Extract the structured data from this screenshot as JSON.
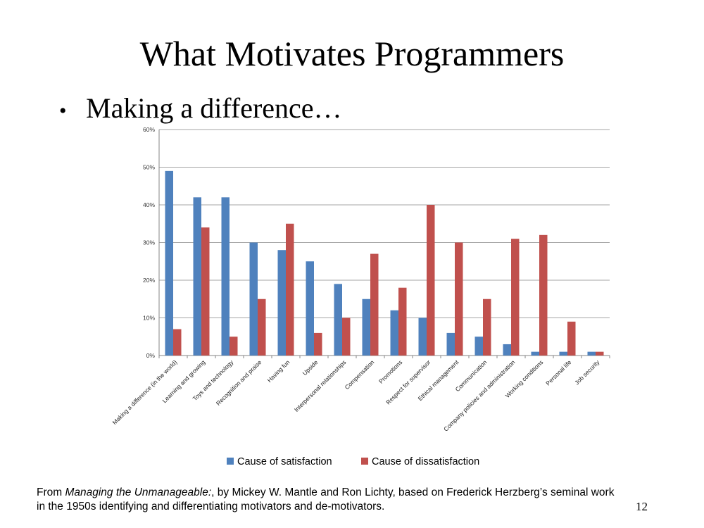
{
  "slide": {
    "title": "What Motivates Programmers",
    "bullet": "Making a difference…",
    "footer_pre": "From ",
    "footer_book": "Managing the Unmanageable:",
    "footer_line1_rest": ", by Mickey W. Mantle and Ron Lichty, based on Frederick Herzberg’s seminal work",
    "footer_line2": "in the 1950s identifying and differentiating motivators and de-motivators.",
    "page_number": "12"
  },
  "chart_data": {
    "type": "bar",
    "title": "",
    "xlabel": "",
    "ylabel": "",
    "ylim": [
      0,
      60
    ],
    "y_ticks": [
      "0%",
      "10%",
      "20%",
      "30%",
      "40%",
      "50%",
      "60%"
    ],
    "grid": true,
    "legend_position": "bottom",
    "categories": [
      "Making a difference (in the world)",
      "Learning and growing",
      "Toys and technology",
      "Recognition and praise",
      "Having fun",
      "Upside",
      "Interpersonal relationships",
      "Compensation",
      "Promotions",
      "Respect for supervisor",
      "Ethical management",
      "Communication",
      "Company policies and administration",
      "Working conditions",
      "Personal life",
      "Job security"
    ],
    "series": [
      {
        "name": "Cause of satisfaction",
        "color": "#4f81bd",
        "values": [
          49,
          42,
          42,
          30,
          28,
          25,
          19,
          15,
          12,
          10,
          6,
          5,
          3,
          1,
          1,
          1
        ]
      },
      {
        "name": "Cause of dissatisfaction",
        "color": "#c0504d",
        "values": [
          7,
          34,
          5,
          15,
          35,
          6,
          10,
          27,
          18,
          40,
          30,
          15,
          31,
          32,
          9,
          1
        ]
      }
    ]
  }
}
